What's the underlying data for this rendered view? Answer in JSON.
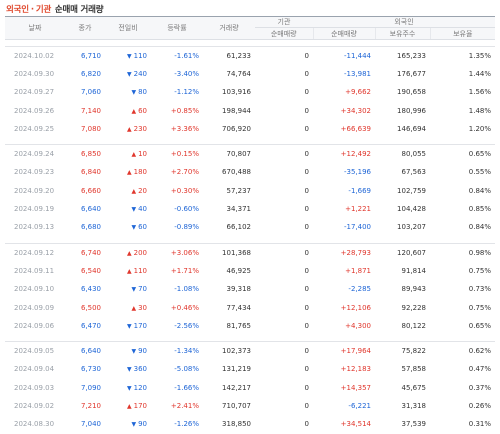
{
  "header": {
    "title_foreign": "외국인",
    "title_sep": "·",
    "title_inst": "기관",
    "title_rest": "순매매 거래량"
  },
  "columns": {
    "date": "날짜",
    "close": "종가",
    "change": "전일비",
    "rate": "등락률",
    "volume": "거래량",
    "inst_group": "기관",
    "foreign_group": "외국인",
    "inst_net": "순매매량",
    "foreign_net": "순매매량",
    "foreign_shares": "보유주수",
    "foreign_ratio": "보유율"
  },
  "groups": [
    {
      "rows": [
        {
          "date": "2024.10.02",
          "close": "6,710",
          "dir": "down",
          "change": "110",
          "rate": "-1.61%",
          "volume": "61,233",
          "inst": "0",
          "foreign": "-11,444",
          "shares": "165,233",
          "ratio": "1.35%"
        },
        {
          "date": "2024.09.30",
          "close": "6,820",
          "dir": "down",
          "change": "240",
          "rate": "-3.40%",
          "volume": "74,764",
          "inst": "0",
          "foreign": "-13,981",
          "shares": "176,677",
          "ratio": "1.44%"
        },
        {
          "date": "2024.09.27",
          "close": "7,060",
          "dir": "down",
          "change": "80",
          "rate": "-1.12%",
          "volume": "103,916",
          "inst": "0",
          "foreign": "+9,662",
          "shares": "190,658",
          "ratio": "1.56%"
        },
        {
          "date": "2024.09.26",
          "close": "7,140",
          "dir": "up",
          "change": "60",
          "rate": "+0.85%",
          "volume": "198,944",
          "inst": "0",
          "foreign": "+34,302",
          "shares": "180,996",
          "ratio": "1.48%"
        },
        {
          "date": "2024.09.25",
          "close": "7,080",
          "dir": "up",
          "change": "230",
          "rate": "+3.36%",
          "volume": "706,920",
          "inst": "0",
          "foreign": "+66,639",
          "shares": "146,694",
          "ratio": "1.20%"
        }
      ]
    },
    {
      "rows": [
        {
          "date": "2024.09.24",
          "close": "6,850",
          "dir": "up",
          "change": "10",
          "rate": "+0.15%",
          "volume": "70,807",
          "inst": "0",
          "foreign": "+12,492",
          "shares": "80,055",
          "ratio": "0.65%"
        },
        {
          "date": "2024.09.23",
          "close": "6,840",
          "dir": "up",
          "change": "180",
          "rate": "+2.70%",
          "volume": "670,488",
          "inst": "0",
          "foreign": "-35,196",
          "shares": "67,563",
          "ratio": "0.55%"
        },
        {
          "date": "2024.09.20",
          "close": "6,660",
          "dir": "up",
          "change": "20",
          "rate": "+0.30%",
          "volume": "57,237",
          "inst": "0",
          "foreign": "-1,669",
          "shares": "102,759",
          "ratio": "0.84%"
        },
        {
          "date": "2024.09.19",
          "close": "6,640",
          "dir": "down",
          "change": "40",
          "rate": "-0.60%",
          "volume": "34,371",
          "inst": "0",
          "foreign": "+1,221",
          "shares": "104,428",
          "ratio": "0.85%"
        },
        {
          "date": "2024.09.13",
          "close": "6,680",
          "dir": "down",
          "change": "60",
          "rate": "-0.89%",
          "volume": "66,102",
          "inst": "0",
          "foreign": "-17,400",
          "shares": "103,207",
          "ratio": "0.84%"
        }
      ]
    },
    {
      "rows": [
        {
          "date": "2024.09.12",
          "close": "6,740",
          "dir": "up",
          "change": "200",
          "rate": "+3.06%",
          "volume": "101,368",
          "inst": "0",
          "foreign": "+28,793",
          "shares": "120,607",
          "ratio": "0.98%"
        },
        {
          "date": "2024.09.11",
          "close": "6,540",
          "dir": "up",
          "change": "110",
          "rate": "+1.71%",
          "volume": "46,925",
          "inst": "0",
          "foreign": "+1,871",
          "shares": "91,814",
          "ratio": "0.75%"
        },
        {
          "date": "2024.09.10",
          "close": "6,430",
          "dir": "down",
          "change": "70",
          "rate": "-1.08%",
          "volume": "39,318",
          "inst": "0",
          "foreign": "-2,285",
          "shares": "89,943",
          "ratio": "0.73%"
        },
        {
          "date": "2024.09.09",
          "close": "6,500",
          "dir": "up",
          "change": "30",
          "rate": "+0.46%",
          "volume": "77,434",
          "inst": "0",
          "foreign": "+12,106",
          "shares": "92,228",
          "ratio": "0.75%"
        },
        {
          "date": "2024.09.06",
          "close": "6,470",
          "dir": "down",
          "change": "170",
          "rate": "-2.56%",
          "volume": "81,765",
          "inst": "0",
          "foreign": "+4,300",
          "shares": "80,122",
          "ratio": "0.65%"
        }
      ]
    },
    {
      "rows": [
        {
          "date": "2024.09.05",
          "close": "6,640",
          "dir": "down",
          "change": "90",
          "rate": "-1.34%",
          "volume": "102,373",
          "inst": "0",
          "foreign": "+17,964",
          "shares": "75,822",
          "ratio": "0.62%"
        },
        {
          "date": "2024.09.04",
          "close": "6,730",
          "dir": "down",
          "change": "360",
          "rate": "-5.08%",
          "volume": "131,219",
          "inst": "0",
          "foreign": "+12,183",
          "shares": "57,858",
          "ratio": "0.47%"
        },
        {
          "date": "2024.09.03",
          "close": "7,090",
          "dir": "down",
          "change": "120",
          "rate": "-1.66%",
          "volume": "142,217",
          "inst": "0",
          "foreign": "+14,357",
          "shares": "45,675",
          "ratio": "0.37%"
        },
        {
          "date": "2024.09.02",
          "close": "7,210",
          "dir": "up",
          "change": "170",
          "rate": "+2.41%",
          "volume": "710,707",
          "inst": "0",
          "foreign": "-6,221",
          "shares": "31,318",
          "ratio": "0.26%"
        },
        {
          "date": "2024.08.30",
          "close": "7,040",
          "dir": "down",
          "change": "90",
          "rate": "-1.26%",
          "volume": "318,850",
          "inst": "0",
          "foreign": "+34,514",
          "shares": "37,539",
          "ratio": "0.31%"
        }
      ]
    }
  ]
}
